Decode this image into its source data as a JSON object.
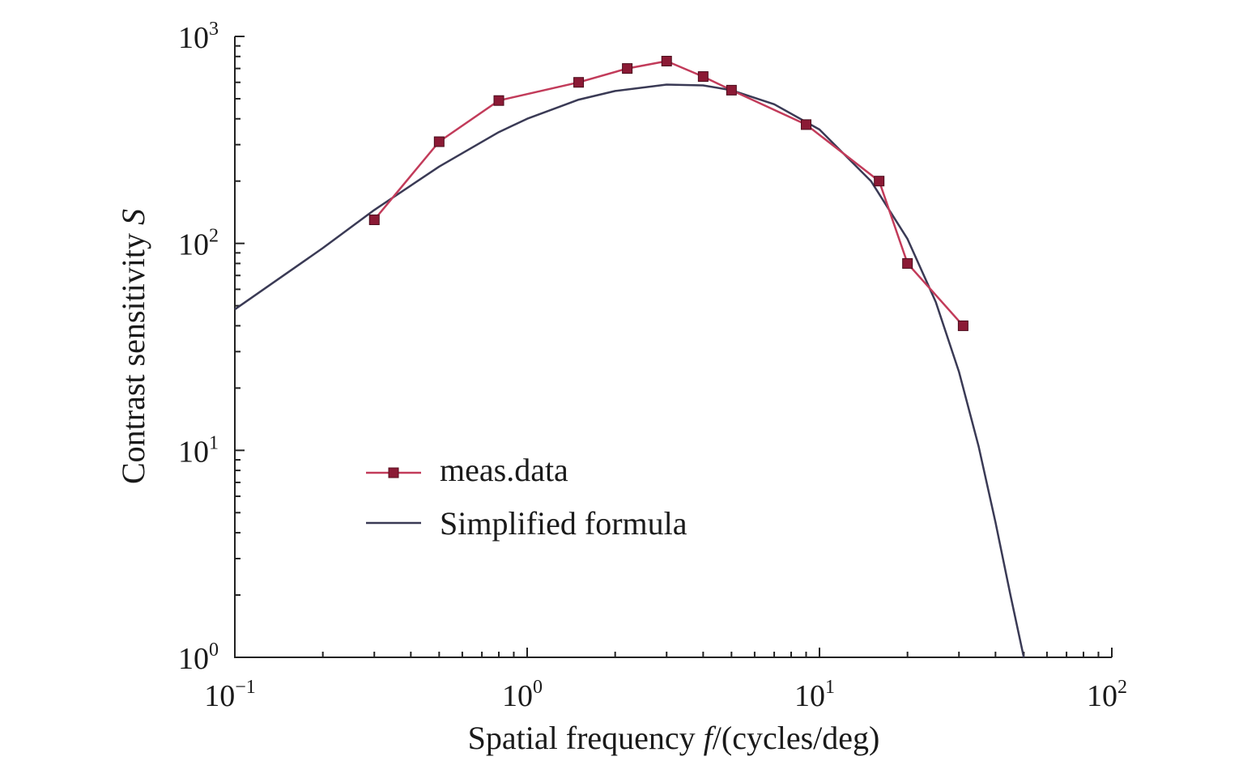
{
  "chart_data": {
    "type": "line",
    "xscale": "log",
    "yscale": "log",
    "xlim": [
      0.1,
      100
    ],
    "ylim": [
      1,
      1000
    ],
    "xlabel": "Spatial frequency f/(cycles/deg)",
    "xlabel_parts": {
      "prefix": "Spatial frequency ",
      "var": "f",
      "suffix": "/(cycles/deg)"
    },
    "ylabel": "Contrast sensitivity S",
    "ylabel_parts": {
      "prefix": "Contrast sensitivity ",
      "var": "S"
    },
    "x_ticks": [
      {
        "value": 0.1,
        "base": "10",
        "exp": "−1"
      },
      {
        "value": 1,
        "base": "10",
        "exp": "0"
      },
      {
        "value": 10,
        "base": "10",
        "exp": "1"
      },
      {
        "value": 100,
        "base": "10",
        "exp": "2"
      }
    ],
    "y_ticks": [
      {
        "value": 1,
        "base": "10",
        "exp": "0"
      },
      {
        "value": 10,
        "base": "10",
        "exp": "1"
      },
      {
        "value": 100,
        "base": "10",
        "exp": "2"
      },
      {
        "value": 1000,
        "base": "10",
        "exp": "3"
      }
    ],
    "grid": false,
    "legend_position": "center-left",
    "series": [
      {
        "name": "meas.data",
        "style": "line-markers",
        "color": "#c23b5a",
        "marker_color": "#8b1a35",
        "x": [
          0.3,
          0.5,
          0.8,
          1.5,
          2.2,
          3.0,
          4.0,
          5.0,
          9.0,
          16.0,
          20.0,
          31.0
        ],
        "y": [
          130,
          310,
          490,
          600,
          700,
          760,
          640,
          550,
          375,
          200,
          80,
          40
        ]
      },
      {
        "name": "Simplified formula",
        "style": "line",
        "color": "#3a3a55",
        "x": [
          0.1,
          0.2,
          0.3,
          0.5,
          0.8,
          1.0,
          1.5,
          2.0,
          3.0,
          4.0,
          5.0,
          7.0,
          10.0,
          15.0,
          20.0,
          25.0,
          30.0,
          35.0,
          40.0,
          45.0,
          50.0
        ],
        "y": [
          48,
          95,
          145,
          235,
          345,
          400,
          495,
          545,
          585,
          580,
          550,
          470,
          355,
          200,
          105,
          52,
          24,
          10.5,
          4.5,
          2.0,
          1.0
        ]
      }
    ]
  }
}
